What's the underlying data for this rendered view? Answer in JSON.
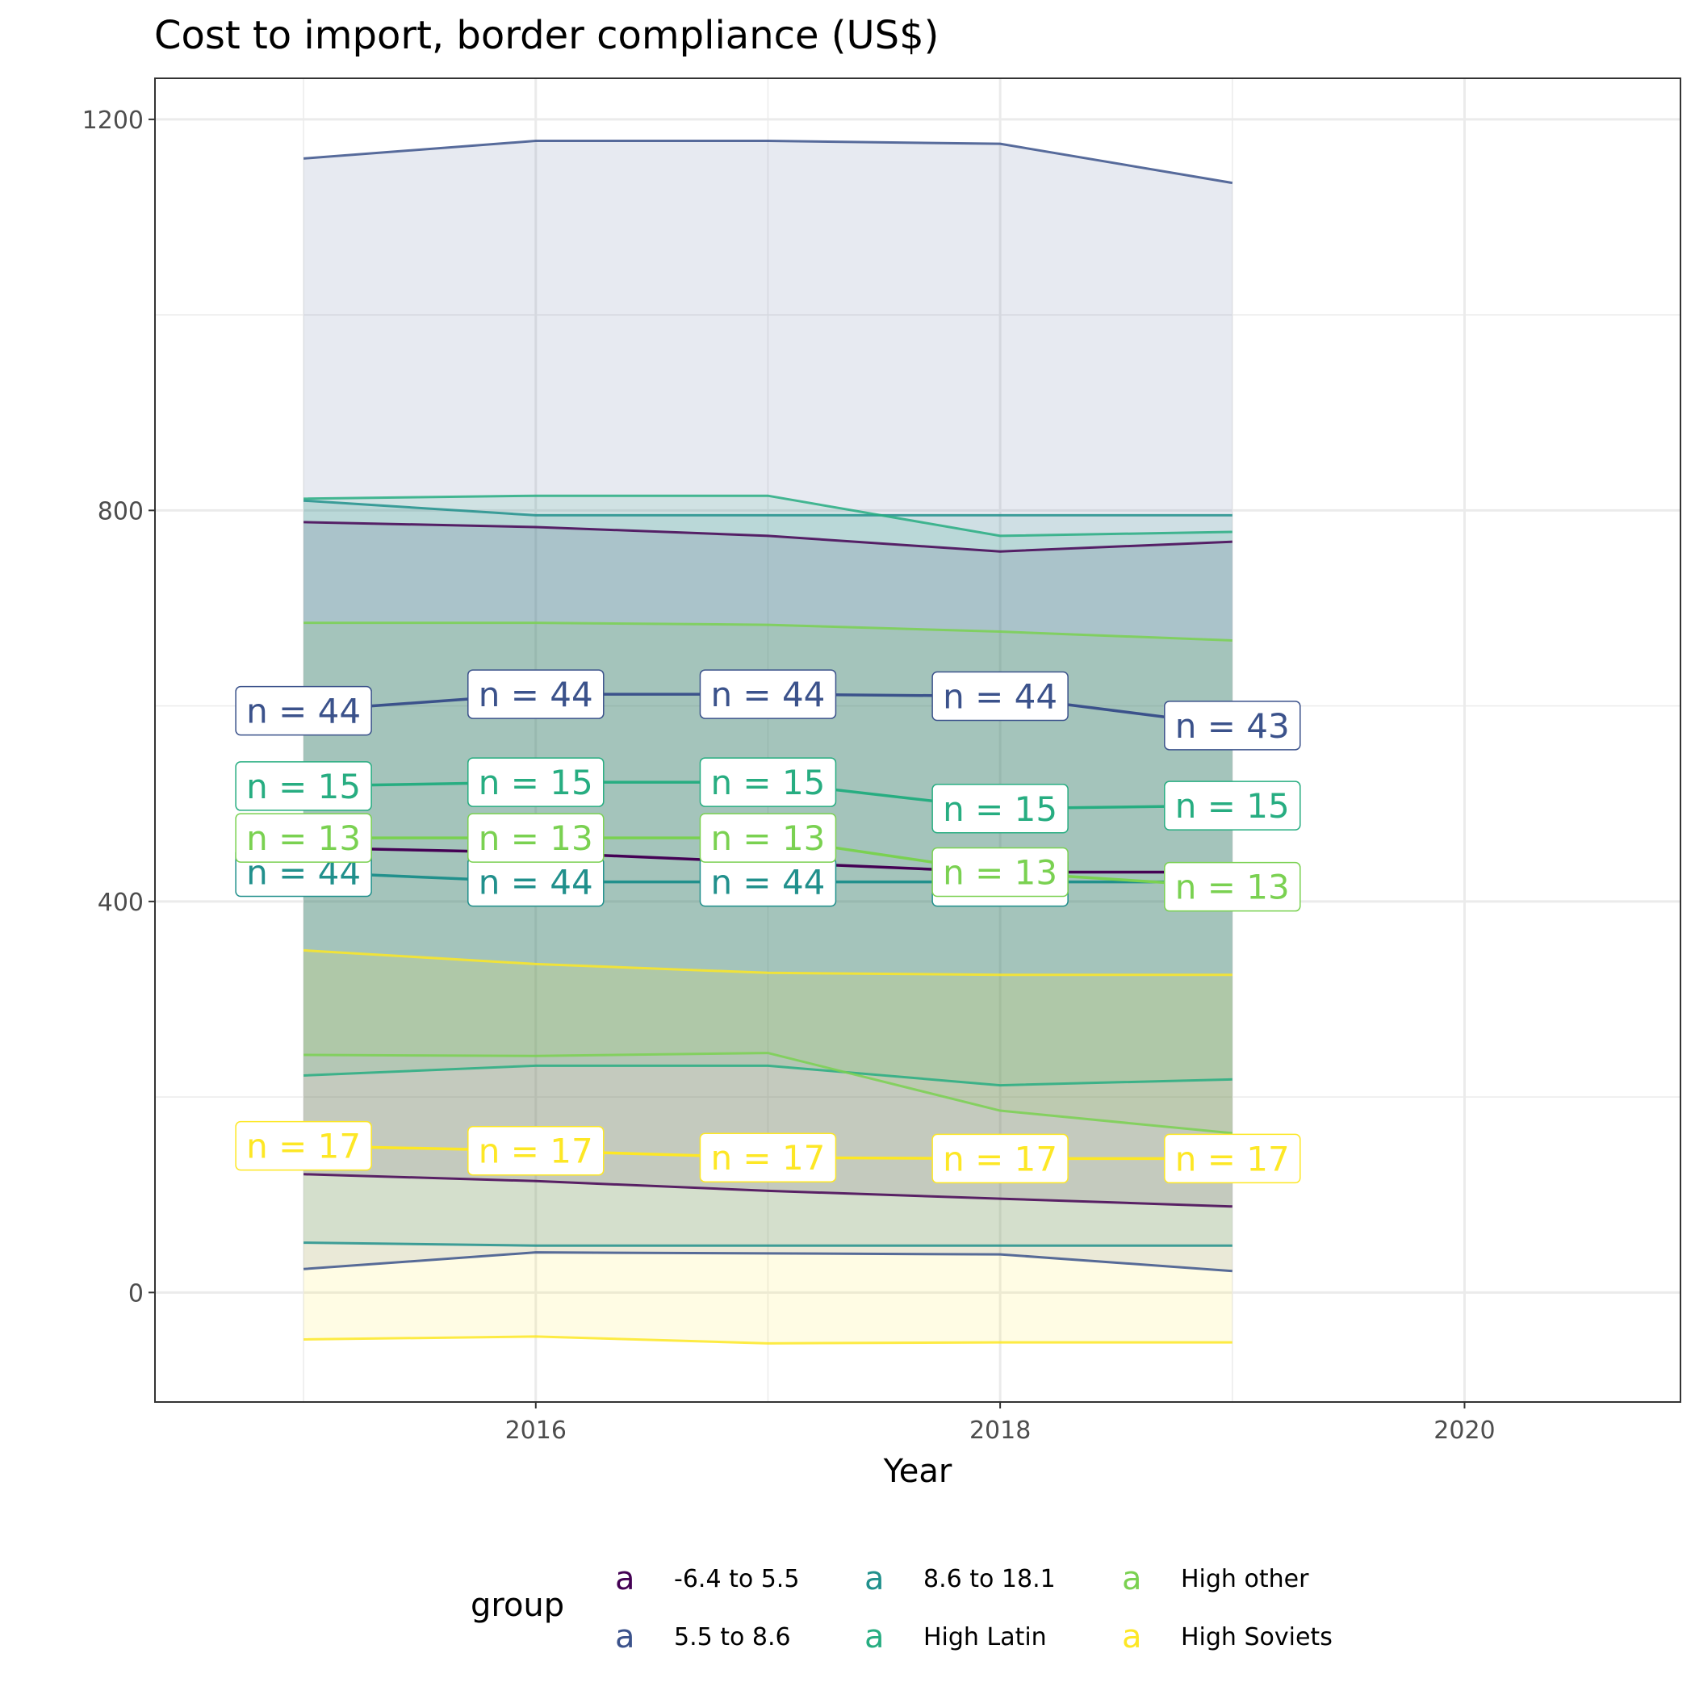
{
  "chart_data": {
    "type": "line",
    "title": "Cost to import, border compliance (US$)",
    "xlabel": "Year",
    "ylabel": "",
    "x": [
      2015,
      2016,
      2017,
      2018,
      2019
    ],
    "xlim": [
      2014.36,
      2020.93
    ],
    "ylim": [
      -112,
      1242
    ],
    "xticks": [
      2016,
      2018,
      2020
    ],
    "yticks": [
      0,
      400,
      800,
      1200
    ],
    "grid": true,
    "legend_position": "bottom",
    "legend_title": "group",
    "series": [
      {
        "name": "-6.4 to 5.5",
        "color": "#440154",
        "mean": [
          455,
          450,
          440,
          430,
          430
        ],
        "upper": [
          788,
          783,
          774,
          758,
          768
        ],
        "lower": [
          121,
          114,
          104,
          96,
          88
        ],
        "n": [
          "",
          "",
          "",
          "",
          ""
        ]
      },
      {
        "name": "5.5 to 8.6",
        "color": "#3b528b",
        "mean": [
          595,
          612,
          612,
          610,
          580
        ],
        "upper": [
          1160,
          1178,
          1178,
          1175,
          1135
        ],
        "lower": [
          24,
          41,
          40,
          39,
          22
        ],
        "n": [
          "n = 44",
          "n = 44",
          "n = 44",
          "n = 44",
          "n = 43"
        ]
      },
      {
        "name": "8.6 to 18.1",
        "color": "#21908c",
        "mean": [
          430,
          420,
          420,
          420,
          420
        ],
        "upper": [
          810,
          795,
          795,
          795,
          795
        ],
        "lower": [
          51,
          48,
          48,
          48,
          48
        ],
        "n": [
          "n = 44",
          "n = 44",
          "n = 44",
          "n = 44",
          ""
        ]
      },
      {
        "name": "High Latin",
        "color": "#27ad81",
        "mean": [
          518,
          522,
          522,
          495,
          498
        ],
        "upper": [
          812,
          815,
          815,
          774,
          778
        ],
        "lower": [
          222,
          232,
          232,
          212,
          218
        ],
        "n": [
          "n = 15",
          "n = 15",
          "n = 15",
          "n = 15",
          "n = 15"
        ]
      },
      {
        "name": "High other",
        "color": "#7ad151",
        "mean": [
          465,
          465,
          465,
          430,
          415
        ],
        "upper": [
          685,
          685,
          683,
          676,
          667
        ],
        "lower": [
          243,
          242,
          245,
          186,
          163
        ],
        "n": [
          "n = 13",
          "n = 13",
          "n = 13",
          "n = 13",
          "n = 13"
        ]
      },
      {
        "name": "High Soviets",
        "color": "#fde725",
        "mean": [
          150,
          145,
          138,
          137,
          137
        ],
        "upper": [
          350,
          336,
          327,
          325,
          325
        ],
        "lower": [
          -48,
          -45,
          -52,
          -51,
          -51
        ],
        "n": [
          "n = 17",
          "n = 17",
          "n = 17",
          "n = 17",
          "n = 17"
        ]
      }
    ]
  },
  "legend_glyph": "a"
}
